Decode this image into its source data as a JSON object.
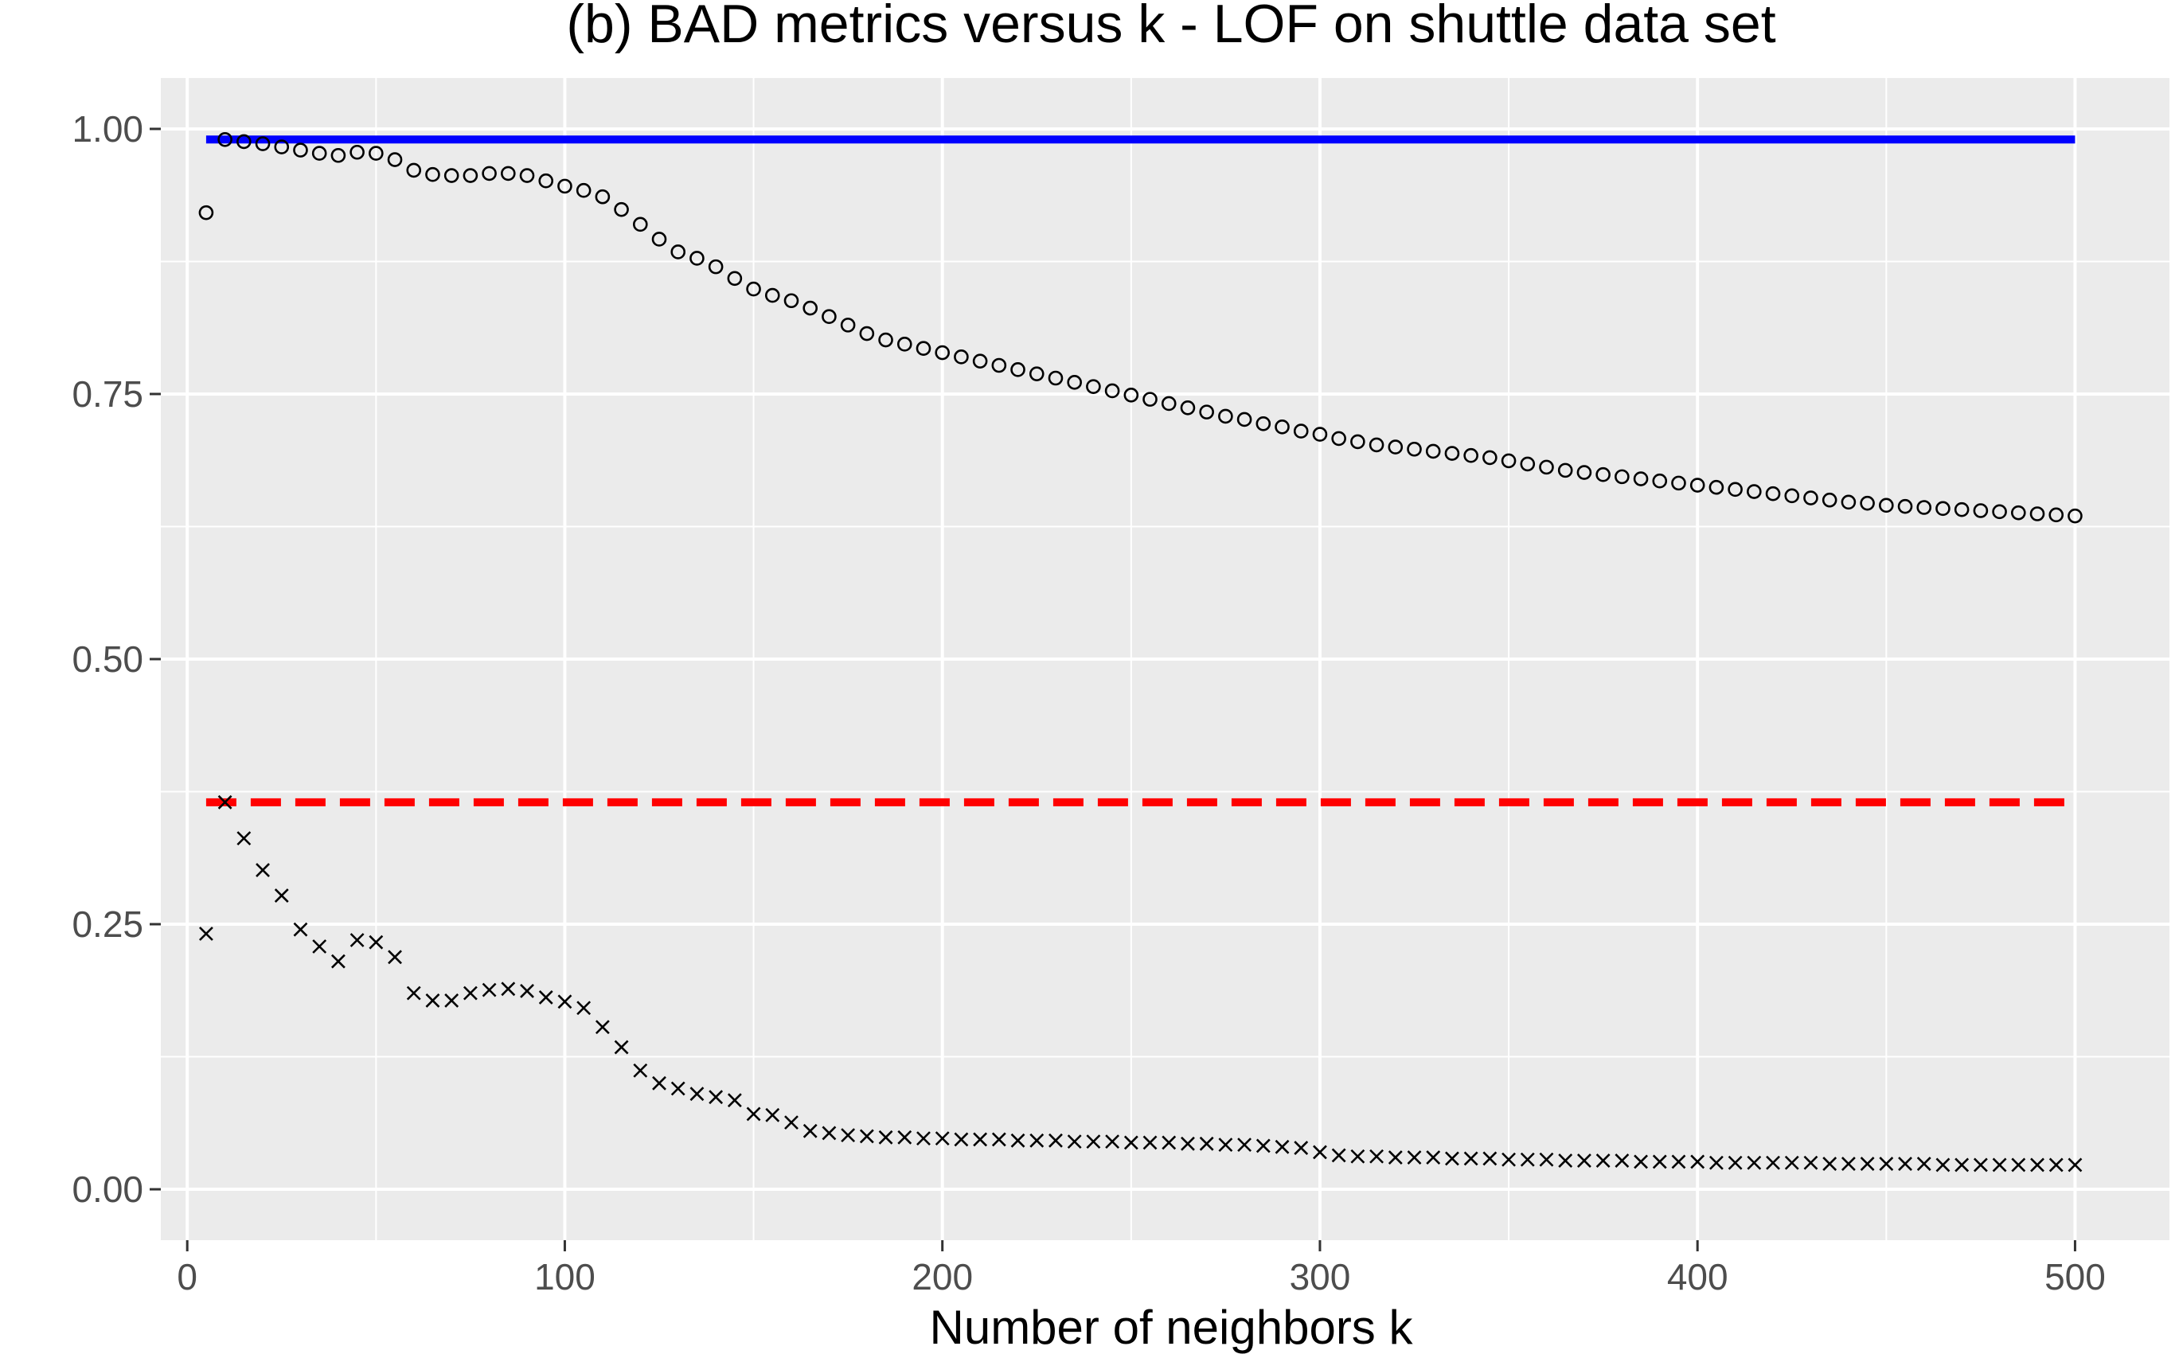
{
  "chart_data": {
    "type": "scatter",
    "title": "(b) BAD metrics versus k - LOF on shuttle data set",
    "xlabel": "Number of neighbors k",
    "ylabel": "",
    "xlim": [
      -7,
      525
    ],
    "ylim": [
      -0.048,
      1.048
    ],
    "x_ticks": [
      0,
      100,
      200,
      300,
      400,
      500
    ],
    "x_tick_labels": [
      "0",
      "100",
      "200",
      "300",
      "400",
      "500"
    ],
    "y_ticks": [
      0,
      0.25,
      0.5,
      0.75,
      1.0
    ],
    "y_tick_labels": [
      "0.00",
      "0.25",
      "0.50",
      "0.75",
      "1.00"
    ],
    "grid": true,
    "legend": "none",
    "colors": {
      "panel_background": "#ebebeb",
      "grid_major": "#ffffff",
      "points": "#000000",
      "reference_solid": "#0000ff",
      "reference_dashed": "#ff0000",
      "tick_text": "#4d4d4d"
    },
    "reference_lines": [
      {
        "y": 0.99,
        "x_start": 5,
        "x_end": 500,
        "style": "solid",
        "color": "#0000ff"
      },
      {
        "y": 0.365,
        "x_start": 5,
        "x_end": 500,
        "style": "dashed",
        "color": "#ff0000"
      }
    ],
    "series": [
      {
        "marker": "circle",
        "x": [
          5,
          10,
          15,
          20,
          25,
          30,
          35,
          40,
          45,
          50,
          55,
          60,
          65,
          70,
          75,
          80,
          85,
          90,
          95,
          100,
          105,
          110,
          115,
          120,
          125,
          130,
          135,
          140,
          145,
          150,
          155,
          160,
          165,
          170,
          175,
          180,
          185,
          190,
          195,
          200,
          205,
          210,
          215,
          220,
          225,
          230,
          235,
          240,
          245,
          250,
          255,
          260,
          265,
          270,
          275,
          280,
          285,
          290,
          295,
          300,
          305,
          310,
          315,
          320,
          325,
          330,
          335,
          340,
          345,
          350,
          355,
          360,
          365,
          370,
          375,
          380,
          385,
          390,
          395,
          400,
          405,
          410,
          415,
          420,
          425,
          430,
          435,
          440,
          445,
          450,
          455,
          460,
          465,
          470,
          475,
          480,
          485,
          490,
          495,
          500
        ],
        "values": [
          0.921,
          0.99,
          0.988,
          0.986,
          0.983,
          0.98,
          0.977,
          0.975,
          0.978,
          0.977,
          0.971,
          0.961,
          0.957,
          0.956,
          0.956,
          0.958,
          0.958,
          0.956,
          0.951,
          0.946,
          0.942,
          0.936,
          0.924,
          0.91,
          0.896,
          0.884,
          0.878,
          0.87,
          0.859,
          0.849,
          0.843,
          0.838,
          0.831,
          0.823,
          0.815,
          0.807,
          0.801,
          0.797,
          0.793,
          0.789,
          0.785,
          0.781,
          0.777,
          0.773,
          0.769,
          0.765,
          0.761,
          0.757,
          0.753,
          0.749,
          0.745,
          0.741,
          0.737,
          0.733,
          0.729,
          0.726,
          0.722,
          0.719,
          0.715,
          0.712,
          0.708,
          0.705,
          0.702,
          0.7,
          0.698,
          0.696,
          0.694,
          0.692,
          0.69,
          0.687,
          0.684,
          0.681,
          0.678,
          0.676,
          0.674,
          0.672,
          0.67,
          0.668,
          0.666,
          0.664,
          0.662,
          0.66,
          0.658,
          0.656,
          0.654,
          0.652,
          0.65,
          0.648,
          0.647,
          0.645,
          0.644,
          0.643,
          0.642,
          0.641,
          0.64,
          0.639,
          0.638,
          0.637,
          0.636,
          0.635
        ]
      },
      {
        "marker": "cross",
        "x": [
          5,
          10,
          15,
          20,
          25,
          30,
          35,
          40,
          45,
          50,
          55,
          60,
          65,
          70,
          75,
          80,
          85,
          90,
          95,
          100,
          105,
          110,
          115,
          120,
          125,
          130,
          135,
          140,
          145,
          150,
          155,
          160,
          165,
          170,
          175,
          180,
          185,
          190,
          195,
          200,
          205,
          210,
          215,
          220,
          225,
          230,
          235,
          240,
          245,
          250,
          255,
          260,
          265,
          270,
          275,
          280,
          285,
          290,
          295,
          300,
          305,
          310,
          315,
          320,
          325,
          330,
          335,
          340,
          345,
          350,
          355,
          360,
          365,
          370,
          375,
          380,
          385,
          390,
          395,
          400,
          405,
          410,
          415,
          420,
          425,
          430,
          435,
          440,
          445,
          450,
          455,
          460,
          465,
          470,
          475,
          480,
          485,
          490,
          495,
          500
        ],
        "values": [
          0.241,
          0.365,
          0.331,
          0.301,
          0.277,
          0.245,
          0.229,
          0.215,
          0.235,
          0.233,
          0.219,
          0.185,
          0.178,
          0.178,
          0.185,
          0.188,
          0.189,
          0.187,
          0.181,
          0.177,
          0.171,
          0.153,
          0.134,
          0.112,
          0.1,
          0.095,
          0.09,
          0.087,
          0.084,
          0.071,
          0.07,
          0.063,
          0.055,
          0.053,
          0.051,
          0.05,
          0.049,
          0.049,
          0.048,
          0.048,
          0.047,
          0.047,
          0.047,
          0.046,
          0.046,
          0.046,
          0.045,
          0.045,
          0.045,
          0.044,
          0.044,
          0.044,
          0.043,
          0.043,
          0.042,
          0.042,
          0.041,
          0.04,
          0.039,
          0.035,
          0.032,
          0.031,
          0.031,
          0.03,
          0.03,
          0.03,
          0.029,
          0.029,
          0.029,
          0.028,
          0.028,
          0.028,
          0.027,
          0.027,
          0.027,
          0.027,
          0.026,
          0.026,
          0.026,
          0.026,
          0.025,
          0.025,
          0.025,
          0.025,
          0.025,
          0.025,
          0.024,
          0.024,
          0.024,
          0.024,
          0.024,
          0.024,
          0.023,
          0.023,
          0.023,
          0.023,
          0.023,
          0.023,
          0.023,
          0.023
        ]
      }
    ]
  }
}
